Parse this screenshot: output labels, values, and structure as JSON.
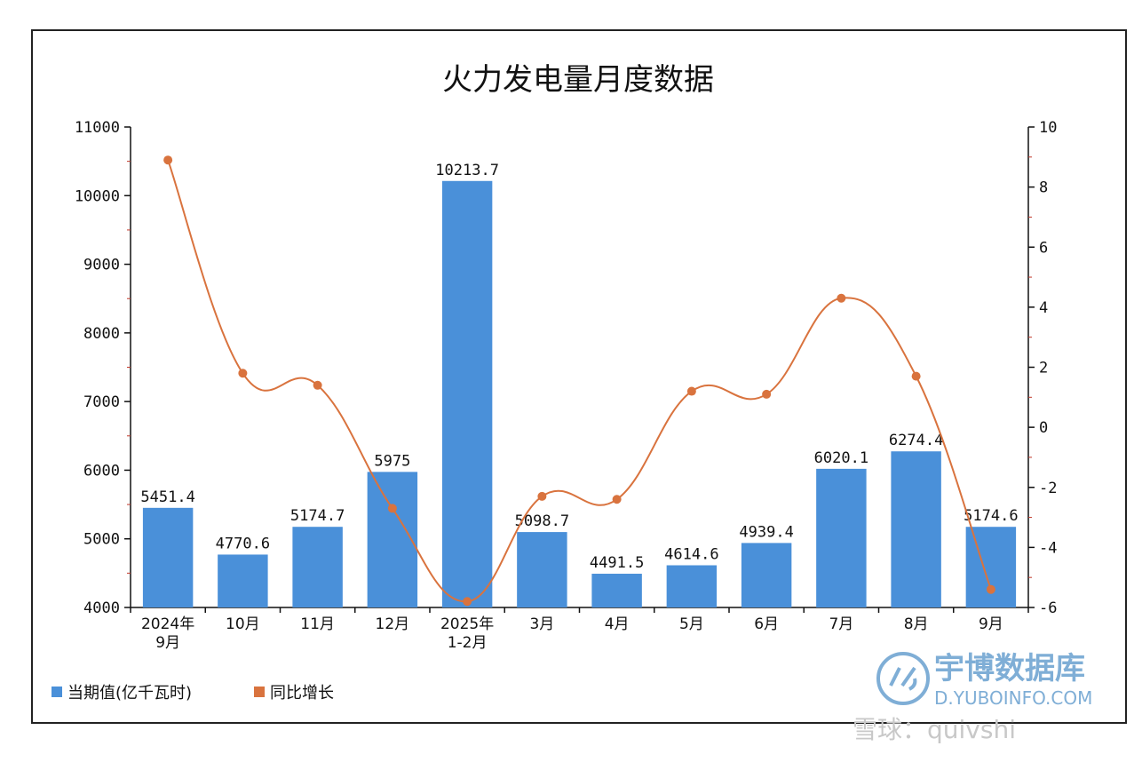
{
  "chart_data": {
    "type": "bar",
    "title": "火力发电量月度数据",
    "categories": [
      "2024年\n9月",
      "10月",
      "11月",
      "12月",
      "2025年\n1-2月",
      "3月",
      "4月",
      "5月",
      "6月",
      "7月",
      "8月",
      "9月"
    ],
    "series": [
      {
        "name": "当期值(亿千瓦时)",
        "type": "bar",
        "axis": "left",
        "color": "#4a90d9",
        "values": [
          5451.4,
          4770.6,
          5174.7,
          5975,
          10213.7,
          5098.7,
          4491.5,
          4614.6,
          4939.4,
          6020.1,
          6274.4,
          5174.6
        ],
        "value_labels": [
          "5451.4",
          "4770.6",
          "5174.7",
          "5975",
          "10213.7",
          "5098.7",
          "4491.5",
          "4614.6",
          "4939.4",
          "6020.1",
          "6274.4",
          "5174.6"
        ]
      },
      {
        "name": "同比增长",
        "type": "line",
        "axis": "right",
        "color": "#d9733e",
        "values": [
          8.9,
          1.8,
          1.4,
          -2.7,
          -5.8,
          -2.3,
          -2.4,
          1.2,
          1.1,
          4.3,
          1.7,
          -5.4
        ]
      }
    ],
    "y_left": {
      "min": 4000,
      "max": 11000,
      "ticks": [
        "4000",
        "5000",
        "6000",
        "7000",
        "8000",
        "9000",
        "10000",
        "11000"
      ]
    },
    "y_right": {
      "min": -6,
      "max": 10,
      "ticks": [
        "-6",
        "-4",
        "-2",
        "0",
        "2",
        "4",
        "6",
        "8",
        "10"
      ]
    },
    "legend": {
      "placement": "bottom-left",
      "items": [
        "当期值(亿千瓦时)",
        "同比增长"
      ]
    },
    "grid": false
  },
  "watermark": {
    "brand": "宇博数据库",
    "url": "D.YUBOINFO.COM",
    "social": "雪球：quivshi"
  }
}
